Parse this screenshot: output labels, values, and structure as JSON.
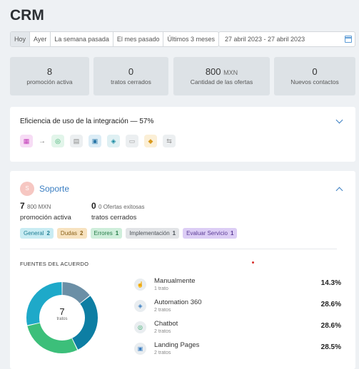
{
  "page_title": "CRM",
  "range_tabs": [
    "Hoy",
    "Ayer",
    "La semana pasada",
    "El mes pasado",
    "Últimos 3 meses"
  ],
  "date_range": "27 abril 2023 - 27 abril 2023",
  "stats": [
    {
      "value": "8",
      "unit": "",
      "label": "promoción activa"
    },
    {
      "value": "0",
      "unit": "",
      "label": "tratos cerrados"
    },
    {
      "value": "800",
      "unit": "MXN",
      "label": "Cantidad de las ofertas"
    },
    {
      "value": "0",
      "unit": "",
      "label": "Nuevos contactos"
    }
  ],
  "efficiency": {
    "title": "Eficiencia de uso de la integración — 57%"
  },
  "support": {
    "avatar": "S",
    "name": "Soporte",
    "active_value": "7",
    "active_amount": "800 MXN",
    "active_label": "promoción activa",
    "closed_value": "0",
    "closed_sub": "0 Ofertas exitosas",
    "closed_label": "tratos cerrados",
    "tags": [
      {
        "label": "General",
        "count": "2",
        "bg": "#c9ecf3",
        "fg": "#1d7d93"
      },
      {
        "label": "Dudas",
        "count": "2",
        "bg": "#f7e2bf",
        "fg": "#8a6118"
      },
      {
        "label": "Errores",
        "count": "1",
        "bg": "#cfeedb",
        "fg": "#237a46"
      },
      {
        "label": "Implementación",
        "count": "1",
        "bg": "#e2e4e7",
        "fg": "#4b5157"
      },
      {
        "label": "Evaluar Servicio",
        "count": "1",
        "bg": "#dccdf5",
        "fg": "#5b3c96"
      }
    ]
  },
  "sources": {
    "title": "FUENTES DEL ACUERDO",
    "total": "7",
    "total_unit": "tratos",
    "items": [
      {
        "name": "Manualmente",
        "sub": "1 trato",
        "pct": "14.3%",
        "icon": "hand-icon"
      },
      {
        "name": "Automation 360",
        "sub": "2 tratos",
        "pct": "28.6%",
        "icon": "automation-icon"
      },
      {
        "name": "Chatbot",
        "sub": "2 tratos",
        "pct": "28.6%",
        "icon": "chatbot-icon"
      },
      {
        "name": "Landing Pages",
        "sub": "2 tratos",
        "pct": "28.5%",
        "icon": "landing-icon"
      }
    ]
  },
  "chart_data": {
    "type": "pie",
    "categories": [
      "Manualmente",
      "Automation 360",
      "Chatbot",
      "Landing Pages"
    ],
    "values": [
      1,
      2,
      2,
      2
    ],
    "colors": [
      "#6b8fa6",
      "#0d7ea3",
      "#3cbf7a",
      "#1ea9c9"
    ]
  }
}
